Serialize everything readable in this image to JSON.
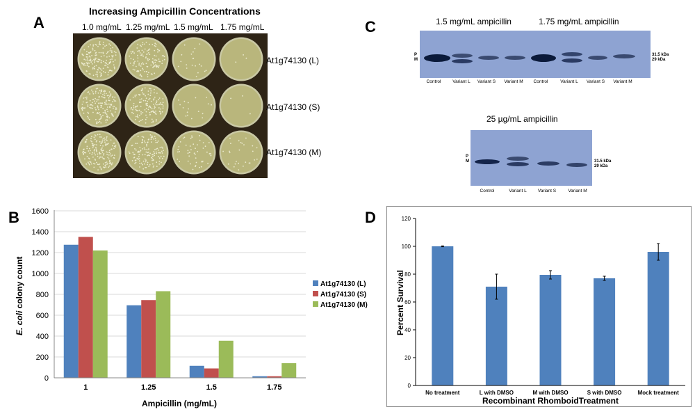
{
  "panel_a": {
    "letter": "A",
    "title": "Increasing Ampicillin Concentrations",
    "columns": [
      "1.0 mg/mL",
      "1.25 mg/mL",
      "1.5 mg/mL",
      "1.75 mg/mL"
    ],
    "rows": [
      "At1g74130 (L)",
      "At1g74130 (S)",
      "At1g74130 (M)"
    ],
    "colony_density": [
      [
        1.0,
        0.75,
        0.12,
        0.02
      ],
      [
        1.0,
        0.8,
        0.1,
        0.02
      ],
      [
        1.0,
        0.8,
        0.3,
        0.15
      ]
    ]
  },
  "panel_b": {
    "letter": "B",
    "chart_data": {
      "type": "bar",
      "categories": [
        "1",
        "1.25",
        "1.5",
        "1.75"
      ],
      "series": [
        {
          "name": "At1g74130 (L)",
          "color": "#4f81bd",
          "values": [
            1275,
            695,
            115,
            15
          ]
        },
        {
          "name": "At1g74130 (S)",
          "color": "#c0504d",
          "values": [
            1350,
            745,
            90,
            15
          ]
        },
        {
          "name": "At1g74130 (M)",
          "color": "#9bbb59",
          "values": [
            1220,
            830,
            355,
            140
          ]
        }
      ],
      "xlabel": "Ampicillin (mg/mL)",
      "ylabel_italic": "E. coli",
      "ylabel_rest": " colony count",
      "ylim": [
        0,
        1600
      ],
      "yticks": [
        "0",
        "200",
        "400",
        "600",
        "800",
        "1000",
        "1200",
        "1400",
        "1600"
      ],
      "legend_position": "right",
      "grid": true
    }
  },
  "panel_c": {
    "letter": "C",
    "blot1_label_left": "1.5 mg/mL ampicillin",
    "blot1_label_right": "1.75 mg/mL ampicillin",
    "blot2_label": "25 µg/mL ampicillin",
    "lanes1": [
      "Control",
      "Variant L",
      "Variant S",
      "Variant M",
      "Control",
      "Variant L",
      "Variant S",
      "Variant M"
    ],
    "lanes2": [
      "Control",
      "Variant L",
      "Variant S",
      "Variant M"
    ],
    "marker_p": "P",
    "marker_m": "M",
    "kda_upper": "31.5 kDa",
    "kda_lower": "29 kDa"
  },
  "panel_d": {
    "letter": "D",
    "chart_data": {
      "type": "bar",
      "categories": [
        "No treatment",
        "L with DMSO",
        "M with DMSO",
        "S with DMSO",
        "Mock treatment"
      ],
      "values": [
        100,
        71,
        79.5,
        77,
        96
      ],
      "errors": [
        0.3,
        9,
        3,
        1.5,
        6
      ],
      "xlabel": "Recombinant RhomboidTreatment",
      "ylabel": "Percent Survival",
      "ylim": [
        0,
        120
      ],
      "yticks": [
        "0",
        "20",
        "40",
        "60",
        "80",
        "100",
        "120"
      ],
      "bar_color": "#4f81bd"
    }
  }
}
